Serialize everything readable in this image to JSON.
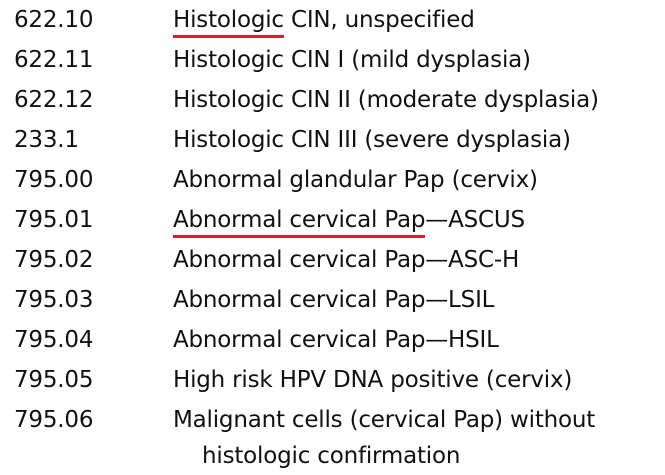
{
  "rows": [
    {
      "code": "622.10",
      "desc_underlined": "Histologic",
      "desc_rest": " CIN, unspecified"
    },
    {
      "code": "622.11",
      "desc_rest": "Histologic CIN I (mild dysplasia)"
    },
    {
      "code": "622.12",
      "desc_rest": "Histologic CIN II (moderate dysplasia)"
    },
    {
      "code": "233.1",
      "desc_rest": "Histologic CIN III (severe dysplasia)"
    },
    {
      "code": "795.00",
      "desc_rest": "Abnormal glandular Pap (cervix)"
    },
    {
      "code": "795.01",
      "desc_underlined": "Abnormal cervical Pap",
      "desc_rest": "—ASCUS"
    },
    {
      "code": "795.02",
      "desc_rest": "Abnormal cervical Pap—ASC-H"
    },
    {
      "code": "795.03",
      "desc_rest": "Abnormal cervical Pap—LSIL"
    },
    {
      "code": "795.04",
      "desc_rest": "Abnormal cervical Pap—HSIL"
    },
    {
      "code": "795.05",
      "desc_rest": "High risk HPV DNA positive (cervix)"
    },
    {
      "code": "795.06",
      "desc_rest": "Malignant cells (cervical Pap) without",
      "desc_line2": "histologic confirmation"
    }
  ],
  "colors": {
    "text": "#111111",
    "underline": "#d7202a",
    "background": "#ffffff"
  }
}
